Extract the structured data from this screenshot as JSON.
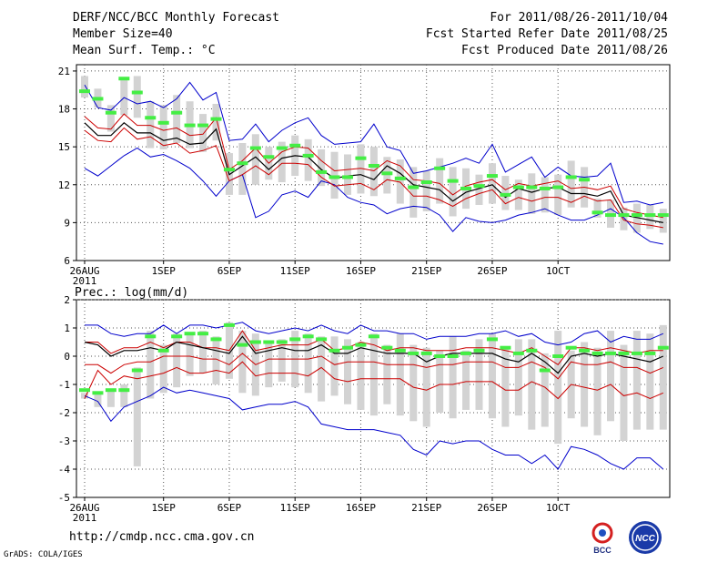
{
  "header": {
    "title": "DERF/NCC/BCC Monthly Forecast",
    "member_size": "Member Size=40",
    "variable": "Mean Surf. Temp.: °C",
    "period": "For 2011/08/26-2011/10/04",
    "started": "Fcst Started Refer Date 2011/08/25",
    "produced": "Fcst Produced Date 2011/08/26"
  },
  "footer": {
    "url": "http://cmdp.ncc.cma.gov.cn",
    "grads": "GrADS: COLA/IGES",
    "logo_left_text": "BCC",
    "logo_right_text": "NCC"
  },
  "colors": {
    "envelope": "#0000cc",
    "spread": "#cc0000",
    "mean": "#000000",
    "box": "#d3d3d3",
    "obs": "#44ee44",
    "grid": "#555555"
  },
  "chart_data": [
    {
      "type": "box",
      "title": "Mean Surf. Temp.: °C",
      "x_tick_labels": [
        "26AUG",
        "1SEP",
        "6SEP",
        "11SEP",
        "16SEP",
        "21SEP",
        "26SEP",
        "1OCT"
      ],
      "x_year_label": "2011",
      "x_tick_days": [
        0,
        6,
        11,
        16,
        21,
        26,
        31,
        36
      ],
      "ylim": [
        6,
        21.5
      ],
      "yticks": [
        6,
        9,
        12,
        15,
        18,
        21
      ],
      "series": [
        {
          "name": "max",
          "values": [
            13.3,
            12.7,
            13.5,
            14.3,
            14.9,
            14.2,
            14.4,
            13.9,
            13.3,
            12.3,
            11.1,
            12.3,
            12.8,
            9.4,
            9.9,
            11.2,
            11.5,
            11.0,
            12.3,
            12.0,
            11.0,
            10.6,
            10.4,
            9.7,
            10.1,
            10.3,
            10.2,
            9.6,
            8.3,
            9.4,
            9.1,
            9.0,
            9.2,
            9.6,
            9.8,
            10.1,
            9.6,
            9.2,
            9.2,
            9.6,
            10.1,
            9.4,
            8.2,
            7.5,
            7.3
          ]
        },
        {
          "name": "member_low",
          "values": [
            16.3,
            15.5,
            15.4,
            16.5,
            15.6,
            15.8,
            15.1,
            15.3,
            14.5,
            14.7,
            15.1,
            12.3,
            12.8,
            13.5,
            12.8,
            13.7,
            13.7,
            13.6,
            12.6,
            11.9,
            12.0,
            12.1,
            11.6,
            12.4,
            12.2,
            11.1,
            11.1,
            10.8,
            10.3,
            10.9,
            11.3,
            11.6,
            10.5,
            11.0,
            10.7,
            11.0,
            11.0,
            10.6,
            11.1,
            10.7,
            10.8,
            9.2,
            8.9,
            8.8,
            8.6
          ]
        },
        {
          "name": "mean",
          "values": [
            16.9,
            15.9,
            15.9,
            16.9,
            16.1,
            16.1,
            15.5,
            15.7,
            15.2,
            15.3,
            16.4,
            12.8,
            13.5,
            14.2,
            13.2,
            14.1,
            14.3,
            14.2,
            13.2,
            12.5,
            12.7,
            12.8,
            12.4,
            13.5,
            12.9,
            12.0,
            11.8,
            11.6,
            10.7,
            11.4,
            11.7,
            12.0,
            11.0,
            11.7,
            11.4,
            11.7,
            11.8,
            11.3,
            11.3,
            11.1,
            11.5,
            9.6,
            9.4,
            9.2,
            9.0
          ]
        },
        {
          "name": "member_high",
          "values": [
            17.4,
            16.5,
            16.4,
            17.6,
            16.7,
            16.7,
            16.3,
            16.5,
            15.9,
            16.0,
            17.3,
            13.2,
            13.9,
            14.9,
            13.7,
            14.6,
            15.0,
            14.9,
            13.9,
            13.1,
            13.2,
            13.3,
            13.1,
            13.9,
            13.5,
            12.4,
            12.3,
            12.1,
            11.2,
            11.9,
            12.2,
            12.4,
            11.6,
            12.1,
            11.9,
            12.1,
            12.3,
            11.7,
            11.8,
            11.6,
            11.9,
            10.1,
            9.8,
            9.6,
            9.4
          ]
        },
        {
          "name": "min",
          "values": [
            19.9,
            18.1,
            17.9,
            18.9,
            18.4,
            18.6,
            18.1,
            18.8,
            20.1,
            18.7,
            19.3,
            15.5,
            15.6,
            16.8,
            15.4,
            16.3,
            16.9,
            17.3,
            15.9,
            15.2,
            15.3,
            15.4,
            16.8,
            15.0,
            14.7,
            12.9,
            13.1,
            13.4,
            13.7,
            14.1,
            13.7,
            15.2,
            13.0,
            13.6,
            14.2,
            12.6,
            13.4,
            12.7,
            12.6,
            12.7,
            13.7,
            10.6,
            10.7,
            10.4,
            10.6
          ]
        },
        {
          "name": "observed",
          "values": [
            19.4,
            18.8,
            17.7,
            20.4,
            19.3,
            17.3,
            16.9,
            17.7,
            16.7,
            16.7,
            17.2,
            13.2,
            13.7,
            14.9,
            14.2,
            14.9,
            15.1,
            14.3,
            13.0,
            12.6,
            12.6,
            14.1,
            13.5,
            12.9,
            12.5,
            11.8,
            12.2,
            13.3,
            12.3,
            11.7,
            11.9,
            12.7,
            11.2,
            11.8,
            11.8,
            11.7,
            11.8,
            12.6,
            12.4,
            9.8,
            9.6,
            9.6,
            9.6,
            9.6,
            9.6
          ]
        },
        {
          "name": "box_top",
          "values": [
            20.6,
            19.6,
            18.3,
            20.3,
            20.6,
            18.6,
            18.3,
            19.1,
            18.6,
            17.6,
            18.4,
            14.5,
            15.3,
            16.0,
            15.0,
            15.4,
            15.9,
            15.6,
            14.8,
            14.6,
            14.4,
            15.2,
            15.0,
            14.2,
            14.0,
            13.4,
            13.1,
            14.1,
            13.4,
            13.3,
            12.8,
            13.7,
            12.7,
            12.4,
            12.9,
            12.6,
            12.8,
            13.9,
            13.4,
            10.9,
            10.8,
            10.2,
            10.5,
            10.4,
            10.1
          ]
        },
        {
          "name": "box_bottom",
          "values": [
            18.9,
            18.1,
            16.2,
            17.5,
            17.3,
            14.9,
            14.8,
            15.3,
            14.9,
            14.6,
            15.5,
            11.2,
            11.2,
            12.0,
            12.4,
            12.2,
            12.7,
            12.3,
            11.9,
            10.9,
            11.2,
            11.3,
            11.1,
            11.3,
            10.5,
            9.4,
            9.9,
            10.5,
            9.5,
            10.1,
            10.4,
            10.5,
            10.0,
            10.0,
            9.7,
            9.8,
            9.6,
            10.2,
            10.2,
            9.4,
            8.6,
            8.4,
            8.2,
            8.5,
            8.2
          ]
        }
      ]
    },
    {
      "type": "box",
      "title": "Prec.: log(mm/d)",
      "x_tick_labels": [
        "26AUG",
        "1SEP",
        "6SEP",
        "11SEP",
        "16SEP",
        "21SEP",
        "26SEP",
        "1OCT"
      ],
      "x_year_label": "2011",
      "x_tick_days": [
        0,
        6,
        11,
        16,
        21,
        26,
        31,
        36
      ],
      "ylim": [
        -5,
        2
      ],
      "yticks": [
        -5,
        -4,
        -3,
        -2,
        -1,
        0,
        1,
        2
      ],
      "series": [
        {
          "name": "max",
          "values": [
            1.1,
            1.1,
            0.8,
            0.7,
            0.8,
            0.8,
            1.1,
            0.8,
            1.1,
            1.1,
            1.0,
            1.1,
            1.2,
            0.9,
            0.8,
            0.9,
            1.0,
            0.9,
            1.1,
            0.9,
            0.8,
            1.1,
            0.9,
            0.9,
            0.8,
            0.8,
            0.6,
            0.7,
            0.7,
            0.7,
            0.8,
            0.8,
            0.9,
            0.7,
            0.8,
            0.5,
            0.4,
            0.5,
            0.8,
            0.9,
            0.5,
            0.7,
            0.6,
            0.6,
            0.8
          ]
        },
        {
          "name": "member_high",
          "values": [
            0.5,
            0.5,
            0.1,
            0.3,
            0.3,
            0.5,
            0.3,
            0.5,
            0.5,
            0.3,
            0.3,
            0.2,
            0.9,
            0.2,
            0.3,
            0.4,
            0.4,
            0.4,
            0.6,
            0.2,
            0.3,
            0.5,
            0.4,
            0.2,
            0.3,
            0.3,
            0.2,
            0.2,
            0.2,
            0.3,
            0.3,
            0.3,
            0.2,
            0.1,
            0.3,
            0.0,
            -0.3,
            0.3,
            0.3,
            0.2,
            0.3,
            0.2,
            0.1,
            0.2,
            0.2
          ]
        },
        {
          "name": "mean",
          "values": [
            0.5,
            0.4,
            0.0,
            0.2,
            0.2,
            0.3,
            0.2,
            0.5,
            0.4,
            0.3,
            0.2,
            0.1,
            0.7,
            0.1,
            0.2,
            0.3,
            0.2,
            0.2,
            0.4,
            0.1,
            0.1,
            0.3,
            0.2,
            0.1,
            0.1,
            0.1,
            -0.2,
            0.0,
            0.1,
            0.1,
            0.1,
            0.1,
            -0.1,
            -0.2,
            0.1,
            -0.2,
            -0.6,
            0.0,
            0.1,
            0.0,
            0.1,
            0.0,
            -0.1,
            -0.2,
            0.0
          ]
        },
        {
          "name": "member_low",
          "values": [
            -0.3,
            -0.3,
            -0.6,
            -0.3,
            -0.2,
            -0.2,
            0.0,
            0.0,
            0.0,
            -0.1,
            -0.1,
            -0.3,
            0.1,
            -0.3,
            -0.1,
            -0.1,
            -0.1,
            -0.1,
            0.0,
            -0.3,
            -0.2,
            -0.2,
            -0.2,
            -0.3,
            -0.3,
            -0.3,
            -0.4,
            -0.3,
            -0.3,
            -0.2,
            -0.2,
            -0.2,
            -0.4,
            -0.4,
            -0.2,
            -0.4,
            -0.8,
            -0.2,
            -0.3,
            -0.3,
            -0.2,
            -0.4,
            -0.4,
            -0.6,
            -0.4
          ]
        },
        {
          "name": "spread_low",
          "values": [
            -1.5,
            -0.5,
            -1.0,
            -0.7,
            -0.8,
            -0.7,
            -0.6,
            -0.4,
            -0.6,
            -0.6,
            -0.5,
            -0.6,
            -0.2,
            -0.7,
            -0.6,
            -0.6,
            -0.6,
            -0.7,
            -0.4,
            -0.8,
            -0.9,
            -0.8,
            -0.8,
            -0.8,
            -0.8,
            -1.1,
            -1.2,
            -1.0,
            -1.0,
            -0.9,
            -0.9,
            -0.9,
            -1.2,
            -1.2,
            -0.9,
            -1.1,
            -1.5,
            -1.0,
            -1.1,
            -1.2,
            -1.0,
            -1.4,
            -1.3,
            -1.5,
            -1.3
          ]
        },
        {
          "name": "min",
          "values": [
            -1.4,
            -1.6,
            -2.3,
            -1.8,
            -1.6,
            -1.4,
            -1.1,
            -1.3,
            -1.2,
            -1.3,
            -1.4,
            -1.5,
            -1.9,
            -1.8,
            -1.7,
            -1.7,
            -1.6,
            -1.8,
            -2.4,
            -2.5,
            -2.6,
            -2.6,
            -2.6,
            -2.7,
            -2.8,
            -3.3,
            -3.5,
            -3.0,
            -3.1,
            -3.0,
            -3.0,
            -3.3,
            -3.5,
            -3.5,
            -3.8,
            -3.5,
            -4.0,
            -3.2,
            -3.3,
            -3.5,
            -3.8,
            -4.0,
            -3.6,
            -3.6,
            -4.0
          ]
        },
        {
          "name": "observed",
          "values": [
            -1.2,
            -1.3,
            -1.2,
            -1.2,
            -0.5,
            0.7,
            0.2,
            0.7,
            0.8,
            0.8,
            0.6,
            1.1,
            0.4,
            0.5,
            0.5,
            0.5,
            0.6,
            0.7,
            0.6,
            0.2,
            0.3,
            0.4,
            0.7,
            0.3,
            0.2,
            0.1,
            0.1,
            0.0,
            0.0,
            0.1,
            0.2,
            0.6,
            0.3,
            0.1,
            0.2,
            -0.5,
            0.0,
            0.3,
            0.2,
            0.1,
            0.1,
            0.1,
            0.1,
            0.1,
            0.3
          ]
        },
        {
          "name": "box_top",
          "values": [
            -1.3,
            -1.3,
            -1.2,
            -1.0,
            -0.4,
            0.9,
            0.4,
            0.8,
            0.8,
            0.9,
            0.7,
            1.2,
            0.9,
            0.8,
            0.5,
            0.6,
            0.9,
            0.8,
            0.7,
            0.7,
            0.6,
            0.5,
            0.8,
            0.4,
            0.8,
            0.4,
            0.3,
            0.2,
            0.7,
            0.2,
            0.6,
            0.8,
            0.3,
            0.6,
            0.6,
            0.1,
            0.9,
            0.2,
            0.5,
            0.3,
            0.9,
            0.4,
            0.9,
            0.8,
            1.1
          ]
        },
        {
          "name": "box_bottom",
          "values": [
            -1.5,
            -1.8,
            -1.8,
            -1.8,
            -3.9,
            -1.5,
            -1.3,
            -1.1,
            -0.7,
            -0.6,
            -1.0,
            -0.8,
            -1.3,
            -1.4,
            -1.1,
            -0.9,
            -1.1,
            -1.3,
            -1.6,
            -1.4,
            -1.7,
            -1.9,
            -2.1,
            -1.7,
            -2.1,
            -2.3,
            -2.5,
            -2.0,
            -2.2,
            -1.9,
            -1.9,
            -2.2,
            -2.5,
            -2.1,
            -2.6,
            -2.5,
            -3.1,
            -2.2,
            -2.5,
            -2.8,
            -2.3,
            -3.0,
            -2.6,
            -2.6,
            -2.6
          ]
        }
      ]
    }
  ]
}
